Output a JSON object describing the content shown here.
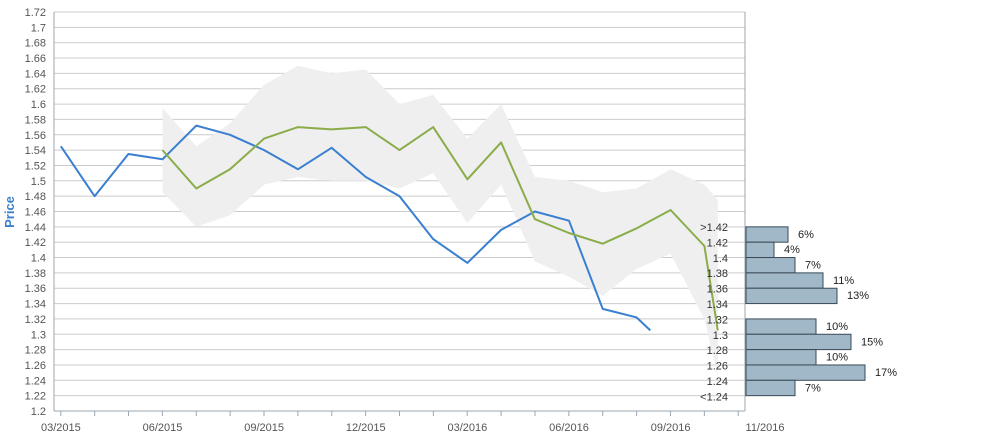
{
  "chart_data": {
    "type": "line",
    "ylabel": "Price",
    "ylim": [
      1.2,
      1.72
    ],
    "y_ticks": [
      "1.2",
      "1.22",
      "1.24",
      "1.26",
      "1.28",
      "1.3",
      "1.32",
      "1.34",
      "1.36",
      "1.38",
      "1.4",
      "1.42",
      "1.44",
      "1.46",
      "1.48",
      "1.5",
      "1.52",
      "1.54",
      "1.56",
      "1.58",
      "1.6",
      "1.62",
      "1.64",
      "1.66",
      "1.68",
      "1.7",
      "1.72"
    ],
    "x_tick_labels": [
      "03/2015",
      "06/2015",
      "09/2015",
      "12/2015",
      "03/2016",
      "06/2016",
      "09/2016",
      "11/2016"
    ],
    "series": [
      {
        "color": "#3a7fd0",
        "x": [
          2015.167,
          2015.25,
          2015.333,
          2015.417,
          2015.5,
          2015.583,
          2015.667,
          2015.75,
          2015.833,
          2015.917,
          2016.0,
          2016.083,
          2016.167,
          2016.25,
          2016.333,
          2016.417,
          2016.5,
          2016.583,
          2016.617
        ],
        "y": [
          1.545,
          1.48,
          1.535,
          1.528,
          1.572,
          1.56,
          1.54,
          1.515,
          1.543,
          1.505,
          1.48,
          1.424,
          1.393,
          1.436,
          1.46,
          1.448,
          1.333,
          1.322,
          1.305
        ]
      },
      {
        "color": "#8aac49",
        "x": [
          2015.417,
          2015.5,
          2015.583,
          2015.667,
          2015.75,
          2015.833,
          2015.917,
          2016.0,
          2016.083,
          2016.167,
          2016.25,
          2016.333,
          2016.417,
          2016.5,
          2016.583,
          2016.667,
          2016.75,
          2016.783
        ],
        "y": [
          1.54,
          1.49,
          1.515,
          1.555,
          1.57,
          1.567,
          1.57,
          1.54,
          1.57,
          1.502,
          1.55,
          1.45,
          1.432,
          1.418,
          1.438,
          1.462,
          1.415,
          1.305
        ]
      }
    ],
    "forecast_band": {
      "color": "#efefef",
      "x": [
        2015.417,
        2015.5,
        2015.583,
        2015.667,
        2015.75,
        2015.833,
        2015.917,
        2016.0,
        2016.083,
        2016.167,
        2016.25,
        2016.333,
        2016.417,
        2016.5,
        2016.583,
        2016.667,
        2016.75,
        2016.783
      ],
      "upper": [
        1.595,
        1.545,
        1.575,
        1.625,
        1.65,
        1.64,
        1.645,
        1.6,
        1.612,
        1.555,
        1.6,
        1.505,
        1.5,
        1.485,
        1.49,
        1.515,
        1.495,
        1.475
      ],
      "lower": [
        1.485,
        1.44,
        1.455,
        1.495,
        1.505,
        1.5,
        1.5,
        1.49,
        1.51,
        1.445,
        1.495,
        1.395,
        1.375,
        1.35,
        1.385,
        1.405,
        1.32,
        1.245
      ]
    },
    "distribution": {
      "color": "#a0b8c7",
      "border": "#3a4a58",
      "bins": [
        {
          "label": ">1.42",
          "low": 1.42,
          "high": 1.44,
          "pct": 6,
          "pct_label": "6%"
        },
        {
          "label": "1.42",
          "low": 1.4,
          "high": 1.42,
          "pct": 4,
          "pct_label": "4%"
        },
        {
          "label": "1.4",
          "low": 1.38,
          "high": 1.4,
          "pct": 7,
          "pct_label": "7%"
        },
        {
          "label": "1.38",
          "low": 1.36,
          "high": 1.38,
          "pct": 11,
          "pct_label": "11%"
        },
        {
          "label": "1.36",
          "low": 1.34,
          "high": 1.36,
          "pct": 13,
          "pct_label": "13%"
        },
        {
          "label": "1.34",
          "low": null,
          "high": null,
          "pct": null,
          "pct_label": ""
        },
        {
          "label": "1.32",
          "low": 1.3,
          "high": 1.32,
          "pct": 10,
          "pct_label": "10%"
        },
        {
          "label": "1.3",
          "low": 1.28,
          "high": 1.3,
          "pct": 15,
          "pct_label": "15%"
        },
        {
          "label": "1.28",
          "low": 1.26,
          "high": 1.28,
          "pct": 10,
          "pct_label": "10%"
        },
        {
          "label": "1.26",
          "low": 1.24,
          "high": 1.26,
          "pct": 17,
          "pct_label": "17%"
        },
        {
          "label": "1.24",
          "low": 1.22,
          "high": 1.24,
          "pct": 7,
          "pct_label": "7%"
        },
        {
          "label": "<1.24",
          "low": null,
          "high": null,
          "pct": null,
          "pct_label": ""
        }
      ]
    },
    "grid": true,
    "colors": {
      "axis_title": "#3a7fd0",
      "grid": "#cccccc",
      "axis": "#9aa7b3"
    }
  }
}
